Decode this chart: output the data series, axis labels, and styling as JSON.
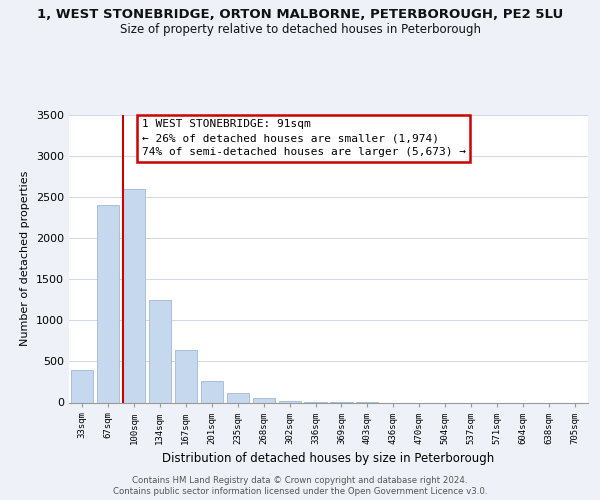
{
  "title": "1, WEST STONEBRIDGE, ORTON MALBORNE, PETERBOROUGH, PE2 5LU",
  "subtitle": "Size of property relative to detached houses in Peterborough",
  "xlabel": "Distribution of detached houses by size in Peterborough",
  "ylabel": "Number of detached properties",
  "bar_color": "#c5d8ee",
  "bar_edge_color": "#a0b8d8",
  "background_color": "#eef2f8",
  "plot_bg_color": "#ffffff",
  "grid_color": "#d0d8e8",
  "categories": [
    "33sqm",
    "67sqm",
    "100sqm",
    "134sqm",
    "167sqm",
    "201sqm",
    "235sqm",
    "268sqm",
    "302sqm",
    "336sqm",
    "369sqm",
    "403sqm",
    "436sqm",
    "470sqm",
    "504sqm",
    "537sqm",
    "571sqm",
    "604sqm",
    "638sqm",
    "705sqm"
  ],
  "values": [
    400,
    2400,
    2600,
    1250,
    640,
    265,
    110,
    55,
    20,
    5,
    2,
    1,
    0,
    0,
    0,
    0,
    0,
    0,
    0,
    0
  ],
  "ylim": [
    0,
    3500
  ],
  "yticks": [
    0,
    500,
    1000,
    1500,
    2000,
    2500,
    3000,
    3500
  ],
  "pct_detached_smaller": 26,
  "n_detached_smaller": 1974,
  "pct_semi_larger": 74,
  "n_semi_larger": 5673,
  "vline_x_index": 2,
  "annotation_box_color": "#ffffff",
  "annotation_box_edge": "#cc0000",
  "vline_color": "#cc0000",
  "footer_line1": "Contains HM Land Registry data © Crown copyright and database right 2024.",
  "footer_line2": "Contains public sector information licensed under the Open Government Licence v3.0."
}
